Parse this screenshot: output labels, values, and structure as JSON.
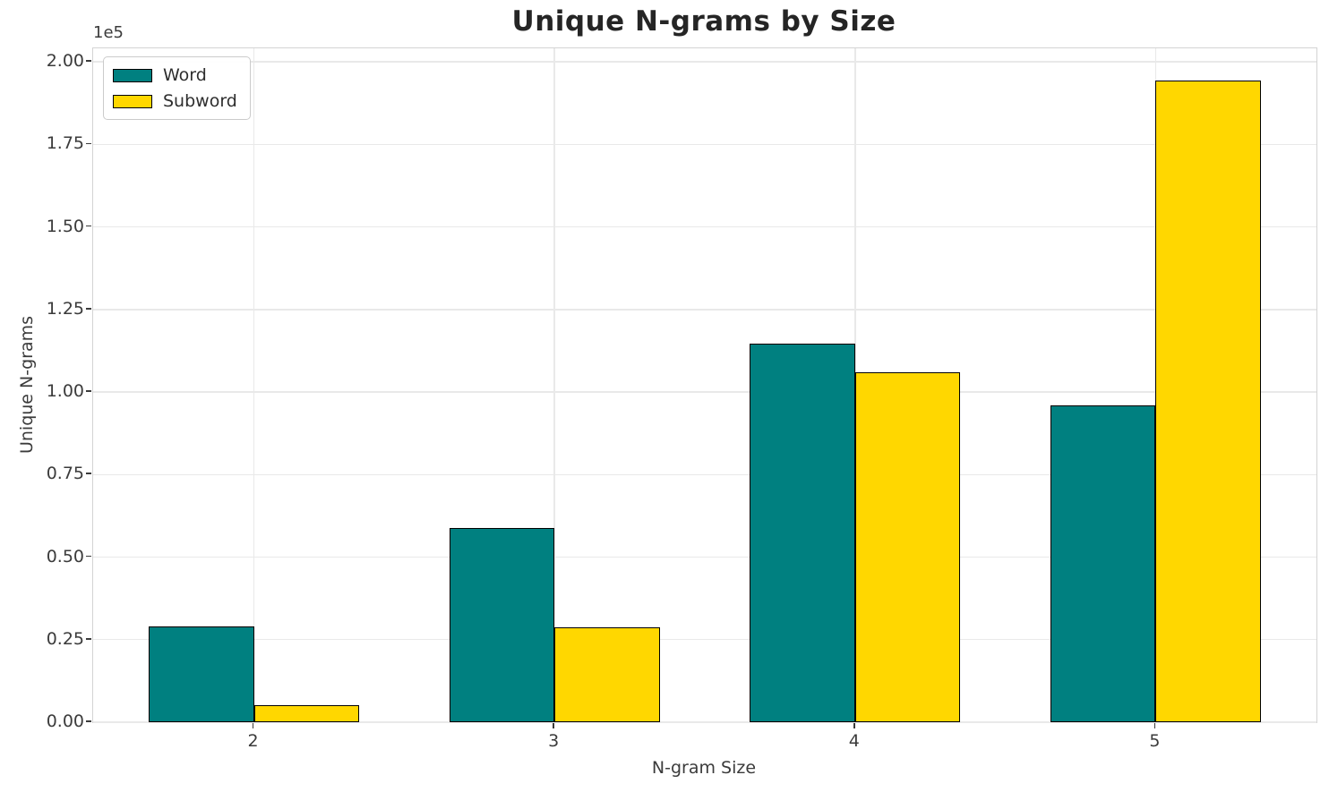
{
  "chart_data": {
    "type": "bar",
    "title": "Unique N-grams by Size",
    "xlabel": "N-gram Size",
    "ylabel": "Unique N-grams",
    "offset_label": "1e5",
    "categories": [
      "2",
      "3",
      "4",
      "5"
    ],
    "series": [
      {
        "name": "Word",
        "color": "#008080",
        "values": [
          29000,
          58700,
          114700,
          96000
        ]
      },
      {
        "name": "Subword",
        "color": "#FFD700",
        "values": [
          5100,
          28700,
          106100,
          194400
        ]
      }
    ],
    "ylim": [
      0,
      204100
    ],
    "yticks": [
      0,
      25000,
      50000,
      75000,
      100000,
      125000,
      150000,
      175000,
      200000
    ],
    "ytick_labels": [
      "0.00",
      "0.25",
      "0.50",
      "0.75",
      "1.00",
      "1.25",
      "1.50",
      "1.75",
      "2.00"
    ],
    "grid": true,
    "legend_position": "upper left",
    "bar_edge_color": "#000000",
    "colors": {
      "grid": "#e9e9e9",
      "spine": "#d3d3d3",
      "tick_text": "#3b3b3b",
      "title_text": "#252525"
    }
  }
}
